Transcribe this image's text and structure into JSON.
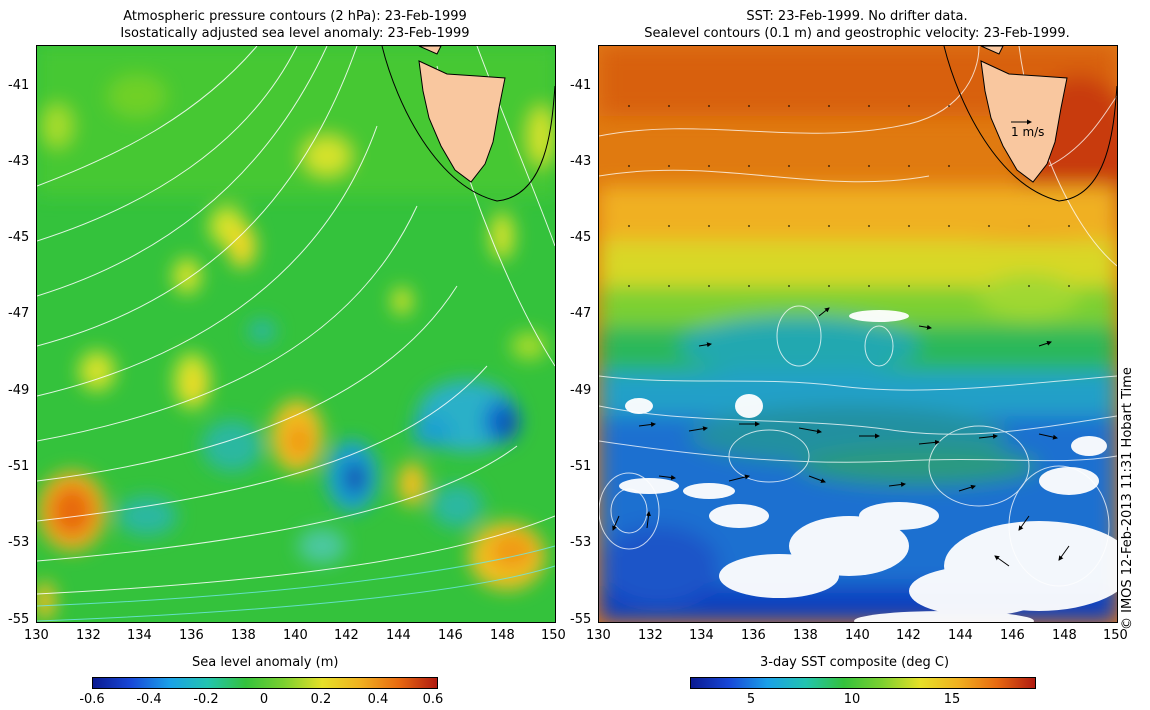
{
  "left_panel": {
    "title_line1": "Atmospheric pressure contours (2 hPa): 23-Feb-1999",
    "title_line2": "Isostatically adjusted sea level anomaly: 23-Feb-1999",
    "y_ticks": [
      "-41",
      "-43",
      "-45",
      "-47",
      "-49",
      "-51",
      "-53",
      "-55"
    ],
    "x_ticks": [
      "130",
      "132",
      "134",
      "136",
      "138",
      "140",
      "142",
      "144",
      "146",
      "148",
      "150"
    ],
    "colorbar_label": "Sea level anomaly (m)",
    "colorbar_ticks": [
      "-0.6",
      "-0.4",
      "-0.2",
      "0",
      "0.2",
      "0.4",
      "0.6"
    ]
  },
  "right_panel": {
    "title_line1": "SST: 23-Feb-1999. No drifter data.",
    "title_line2": "Sealevel contours (0.1 m) and geostrophic velocity: 23-Feb-1999.",
    "velocity_scale_label": "1 m/s",
    "y_ticks": [
      "-41",
      "-43",
      "-45",
      "-47",
      "-49",
      "-51",
      "-53",
      "-55"
    ],
    "x_ticks": [
      "130",
      "132",
      "134",
      "136",
      "138",
      "140",
      "142",
      "144",
      "146",
      "148",
      "150"
    ],
    "colorbar_label": "3-day SST composite (deg C)",
    "colorbar_ticks": [
      "5",
      "10",
      "15"
    ]
  },
  "copyright": "© IMOS 12-Feb-2013 11:31 Hobart Time",
  "colors": {
    "land": "#f9c79f",
    "sla_background": "#34c23c",
    "sst_warm": "#e07a10",
    "sst_cool": "#1f6fd0"
  }
}
